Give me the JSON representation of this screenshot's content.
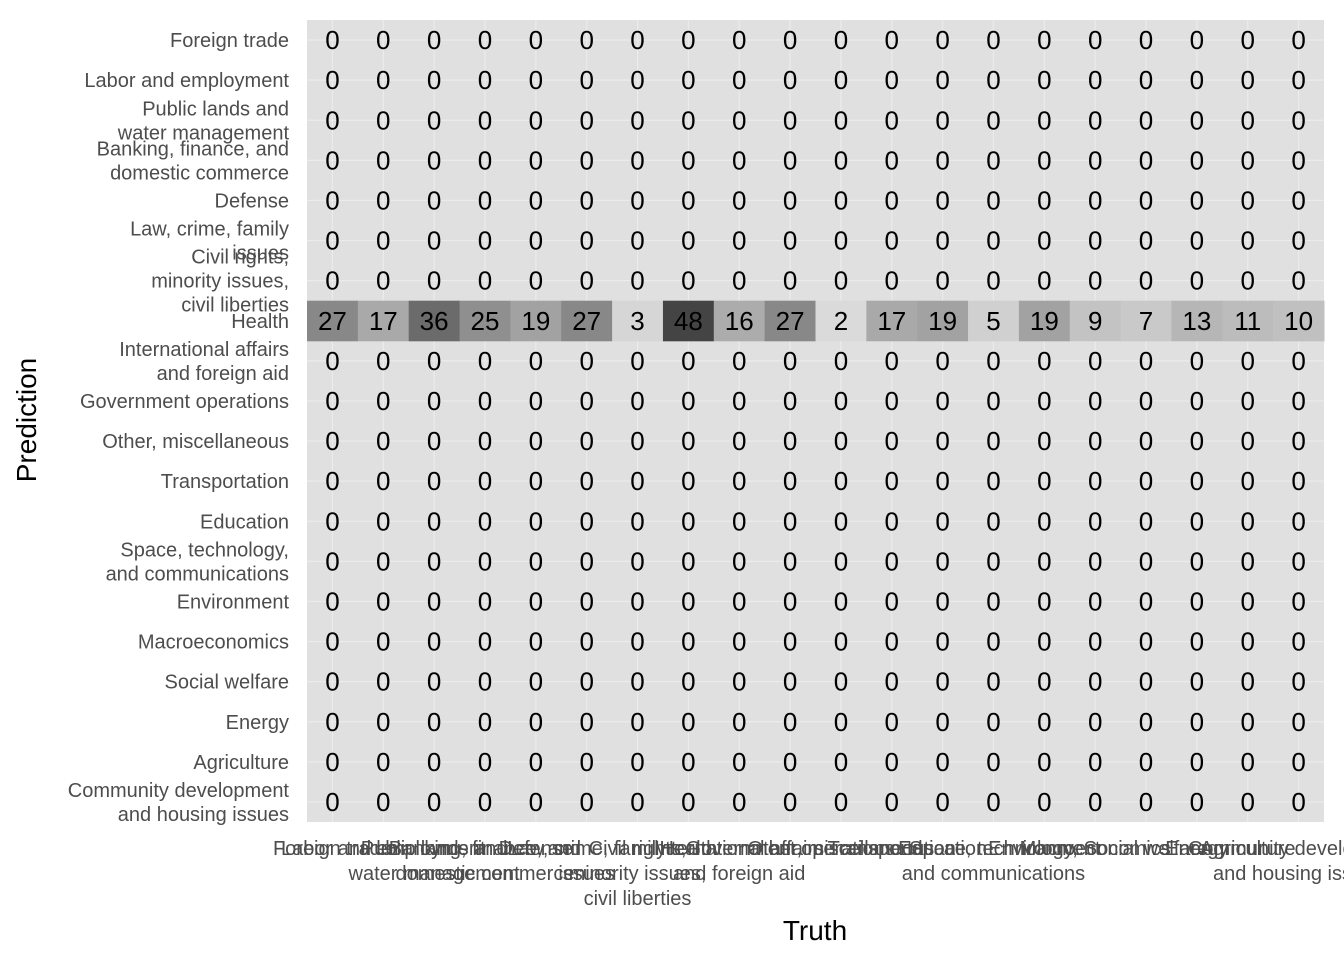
{
  "chart_data": {
    "type": "heatmap",
    "xlabel": "Truth",
    "ylabel": "Prediction",
    "x_categories": [
      "Foreign trade",
      "Labor and employment",
      "Public lands and water management",
      "Banking, finance, and domestic commerce",
      "Defense",
      "Law, crime, family issues",
      "Civil rights, minority issues, civil liberties",
      "Health",
      "International affairs and foreign aid",
      "Government operations",
      "Other, miscellaneous",
      "Transportation",
      "Education",
      "Space, technology, and communications",
      "Environment",
      "Macroeconomics",
      "Social welfare",
      "Energy",
      "Agriculture",
      "Community development and housing issues"
    ],
    "y_categories": [
      "Foreign trade",
      "Labor and employment",
      "Public lands and water management",
      "Banking, finance, and domestic commerce",
      "Defense",
      "Law, crime, family issues",
      "Civil rights, minority issues, civil liberties",
      "Health",
      "International affairs and foreign aid",
      "Government operations",
      "Other, miscellaneous",
      "Transportation",
      "Education",
      "Space, technology, and communications",
      "Environment",
      "Macroeconomics",
      "Social welfare",
      "Energy",
      "Agriculture",
      "Community development and housing issues"
    ],
    "values": [
      [
        0,
        0,
        0,
        0,
        0,
        0,
        0,
        0,
        0,
        0,
        0,
        0,
        0,
        0,
        0,
        0,
        0,
        0,
        0,
        0
      ],
      [
        0,
        0,
        0,
        0,
        0,
        0,
        0,
        0,
        0,
        0,
        0,
        0,
        0,
        0,
        0,
        0,
        0,
        0,
        0,
        0
      ],
      [
        0,
        0,
        0,
        0,
        0,
        0,
        0,
        0,
        0,
        0,
        0,
        0,
        0,
        0,
        0,
        0,
        0,
        0,
        0,
        0
      ],
      [
        0,
        0,
        0,
        0,
        0,
        0,
        0,
        0,
        0,
        0,
        0,
        0,
        0,
        0,
        0,
        0,
        0,
        0,
        0,
        0
      ],
      [
        0,
        0,
        0,
        0,
        0,
        0,
        0,
        0,
        0,
        0,
        0,
        0,
        0,
        0,
        0,
        0,
        0,
        0,
        0,
        0
      ],
      [
        0,
        0,
        0,
        0,
        0,
        0,
        0,
        0,
        0,
        0,
        0,
        0,
        0,
        0,
        0,
        0,
        0,
        0,
        0,
        0
      ],
      [
        0,
        0,
        0,
        0,
        0,
        0,
        0,
        0,
        0,
        0,
        0,
        0,
        0,
        0,
        0,
        0,
        0,
        0,
        0,
        0
      ],
      [
        27,
        17,
        36,
        25,
        19,
        27,
        3,
        48,
        16,
        27,
        2,
        17,
        19,
        5,
        19,
        9,
        7,
        13,
        11,
        10
      ],
      [
        0,
        0,
        0,
        0,
        0,
        0,
        0,
        0,
        0,
        0,
        0,
        0,
        0,
        0,
        0,
        0,
        0,
        0,
        0,
        0
      ],
      [
        0,
        0,
        0,
        0,
        0,
        0,
        0,
        0,
        0,
        0,
        0,
        0,
        0,
        0,
        0,
        0,
        0,
        0,
        0,
        0
      ],
      [
        0,
        0,
        0,
        0,
        0,
        0,
        0,
        0,
        0,
        0,
        0,
        0,
        0,
        0,
        0,
        0,
        0,
        0,
        0,
        0
      ],
      [
        0,
        0,
        0,
        0,
        0,
        0,
        0,
        0,
        0,
        0,
        0,
        0,
        0,
        0,
        0,
        0,
        0,
        0,
        0,
        0
      ],
      [
        0,
        0,
        0,
        0,
        0,
        0,
        0,
        0,
        0,
        0,
        0,
        0,
        0,
        0,
        0,
        0,
        0,
        0,
        0,
        0
      ],
      [
        0,
        0,
        0,
        0,
        0,
        0,
        0,
        0,
        0,
        0,
        0,
        0,
        0,
        0,
        0,
        0,
        0,
        0,
        0,
        0
      ],
      [
        0,
        0,
        0,
        0,
        0,
        0,
        0,
        0,
        0,
        0,
        0,
        0,
        0,
        0,
        0,
        0,
        0,
        0,
        0,
        0
      ],
      [
        0,
        0,
        0,
        0,
        0,
        0,
        0,
        0,
        0,
        0,
        0,
        0,
        0,
        0,
        0,
        0,
        0,
        0,
        0,
        0
      ],
      [
        0,
        0,
        0,
        0,
        0,
        0,
        0,
        0,
        0,
        0,
        0,
        0,
        0,
        0,
        0,
        0,
        0,
        0,
        0,
        0
      ],
      [
        0,
        0,
        0,
        0,
        0,
        0,
        0,
        0,
        0,
        0,
        0,
        0,
        0,
        0,
        0,
        0,
        0,
        0,
        0,
        0
      ],
      [
        0,
        0,
        0,
        0,
        0,
        0,
        0,
        0,
        0,
        0,
        0,
        0,
        0,
        0,
        0,
        0,
        0,
        0,
        0,
        0
      ],
      [
        0,
        0,
        0,
        0,
        0,
        0,
        0,
        0,
        0,
        0,
        0,
        0,
        0,
        0,
        0,
        0,
        0,
        0,
        0,
        0
      ]
    ],
    "color_low": "#e0e0e0",
    "color_high": "#444444",
    "panel_background": "#e0e0e0",
    "grid": true,
    "legend": "none"
  }
}
